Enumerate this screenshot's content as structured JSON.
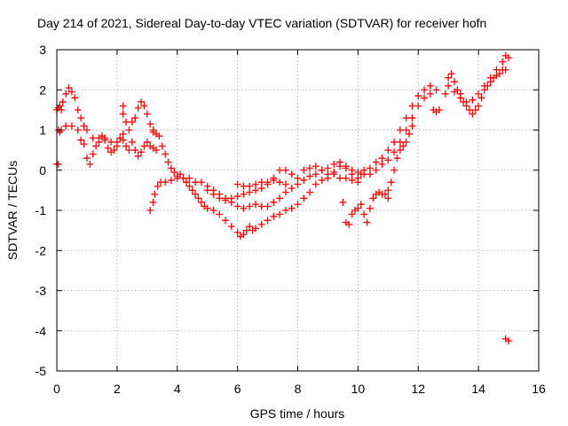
{
  "chart_data": {
    "type": "scatter",
    "title": "Day 214 of 2021, Sidereal Day-to-day VTEC variation (SDTVAR) for receiver hofn",
    "xlabel": "GPS time / hours",
    "ylabel": "SDTVAR / TECUs",
    "xlim": [
      0,
      16
    ],
    "ylim": [
      -5,
      3
    ],
    "x_ticks": [
      "0",
      "2",
      "4",
      "6",
      "8",
      "10",
      "12",
      "14",
      "16"
    ],
    "y_ticks": [
      "3",
      "2",
      "1",
      "0",
      "-1",
      "-2",
      "-3",
      "-4",
      "-5"
    ],
    "grid": true,
    "marker": "plus",
    "color": "#ff0000",
    "series": [
      {
        "points": [
          [
            0.0,
            0.15
          ],
          [
            0.05,
            0.15
          ],
          [
            0.0,
            1.5
          ],
          [
            0.05,
            1.55
          ],
          [
            0.1,
            1.6
          ],
          [
            0.15,
            1.5
          ],
          [
            0.05,
            1.0
          ],
          [
            0.1,
            0.95
          ],
          [
            0.15,
            1.0
          ],
          [
            0.2,
            1.7
          ],
          [
            0.3,
            1.9
          ],
          [
            0.4,
            2.05
          ],
          [
            0.5,
            1.95
          ],
          [
            0.6,
            1.8
          ],
          [
            0.7,
            1.5
          ],
          [
            0.8,
            1.3
          ],
          [
            0.9,
            1.1
          ],
          [
            1.0,
            1.0
          ],
          [
            0.3,
            1.1
          ],
          [
            0.5,
            1.1
          ],
          [
            0.7,
            1.0
          ],
          [
            0.8,
            0.75
          ],
          [
            0.9,
            0.65
          ],
          [
            1.0,
            0.3
          ],
          [
            1.1,
            0.15
          ],
          [
            1.2,
            0.4
          ],
          [
            1.3,
            0.6
          ],
          [
            1.4,
            0.7
          ],
          [
            1.5,
            0.85
          ],
          [
            1.6,
            0.75
          ],
          [
            1.7,
            0.55
          ],
          [
            1.8,
            0.45
          ],
          [
            1.9,
            0.5
          ],
          [
            2.0,
            0.6
          ],
          [
            2.1,
            0.8
          ],
          [
            2.2,
            0.75
          ],
          [
            2.3,
            0.6
          ],
          [
            2.4,
            0.5
          ],
          [
            1.2,
            0.8
          ],
          [
            1.4,
            0.8
          ],
          [
            1.6,
            0.8
          ],
          [
            1.8,
            0.7
          ],
          [
            2.0,
            0.7
          ],
          [
            2.2,
            0.9
          ],
          [
            2.3,
            1.2
          ],
          [
            2.2,
            1.4
          ],
          [
            2.2,
            1.6
          ],
          [
            2.4,
            1.0
          ],
          [
            2.5,
            1.2
          ],
          [
            2.6,
            1.3
          ],
          [
            2.7,
            1.55
          ],
          [
            2.8,
            1.7
          ],
          [
            2.9,
            1.6
          ],
          [
            3.0,
            1.4
          ],
          [
            3.1,
            1.15
          ],
          [
            3.2,
            0.95
          ],
          [
            2.5,
            0.7
          ],
          [
            2.6,
            0.5
          ],
          [
            2.7,
            0.35
          ],
          [
            2.8,
            0.45
          ],
          [
            2.9,
            0.6
          ],
          [
            3.0,
            0.7
          ],
          [
            3.1,
            0.6
          ],
          [
            3.2,
            0.55
          ],
          [
            3.3,
            0.5
          ],
          [
            3.2,
            1.0
          ],
          [
            3.3,
            0.9
          ],
          [
            3.4,
            0.85
          ],
          [
            3.5,
            0.6
          ],
          [
            3.6,
            0.4
          ],
          [
            3.7,
            0.2
          ],
          [
            3.8,
            0.05
          ],
          [
            3.9,
            -0.05
          ],
          [
            4.0,
            -0.15
          ],
          [
            3.1,
            -1.0
          ],
          [
            3.2,
            -0.8
          ],
          [
            3.25,
            -0.6
          ],
          [
            3.35,
            -0.4
          ],
          [
            3.45,
            -0.3
          ],
          [
            3.6,
            -0.3
          ],
          [
            3.8,
            -0.25
          ],
          [
            4.0,
            -0.2
          ],
          [
            4.1,
            -0.1
          ],
          [
            4.2,
            -0.2
          ],
          [
            4.3,
            -0.3
          ],
          [
            4.4,
            -0.4
          ],
          [
            4.5,
            -0.5
          ],
          [
            4.6,
            -0.6
          ],
          [
            4.7,
            -0.7
          ],
          [
            4.8,
            -0.8
          ],
          [
            4.9,
            -0.9
          ],
          [
            5.0,
            -0.95
          ],
          [
            5.2,
            -1.0
          ],
          [
            5.4,
            -1.1
          ],
          [
            5.6,
            -1.25
          ],
          [
            5.8,
            -1.4
          ],
          [
            6.0,
            -1.55
          ],
          [
            6.1,
            -1.65
          ],
          [
            6.2,
            -1.6
          ],
          [
            6.3,
            -1.5
          ],
          [
            6.4,
            -1.4
          ],
          [
            6.5,
            -1.5
          ],
          [
            6.6,
            -1.45
          ],
          [
            6.8,
            -1.35
          ],
          [
            7.0,
            -1.25
          ],
          [
            7.2,
            -1.15
          ],
          [
            7.4,
            -1.1
          ],
          [
            7.6,
            -1.0
          ],
          [
            7.8,
            -0.95
          ],
          [
            8.0,
            -0.85
          ],
          [
            8.2,
            -0.7
          ],
          [
            8.4,
            -0.55
          ],
          [
            8.6,
            -0.35
          ],
          [
            8.8,
            -0.25
          ],
          [
            9.0,
            -0.2
          ],
          [
            9.2,
            -0.1
          ],
          [
            9.4,
            -0.2
          ],
          [
            9.6,
            -0.2
          ],
          [
            9.8,
            -0.25
          ],
          [
            10.0,
            -0.3
          ],
          [
            4.4,
            -0.2
          ],
          [
            4.6,
            -0.3
          ],
          [
            4.8,
            -0.3
          ],
          [
            5.0,
            -0.4
          ],
          [
            5.2,
            -0.5
          ],
          [
            5.4,
            -0.6
          ],
          [
            5.6,
            -0.7
          ],
          [
            5.8,
            -0.8
          ],
          [
            6.0,
            -0.9
          ],
          [
            6.2,
            -0.95
          ],
          [
            6.4,
            -0.9
          ],
          [
            6.6,
            -0.85
          ],
          [
            6.8,
            -0.9
          ],
          [
            7.0,
            -0.9
          ],
          [
            7.2,
            -0.8
          ],
          [
            7.4,
            -0.7
          ],
          [
            7.6,
            -0.55
          ],
          [
            7.8,
            -0.45
          ],
          [
            8.0,
            -0.35
          ],
          [
            8.2,
            -0.25
          ],
          [
            8.4,
            -0.15
          ],
          [
            8.6,
            -0.1
          ],
          [
            8.8,
            0.0
          ],
          [
            9.0,
            0.05
          ],
          [
            9.2,
            0.15
          ],
          [
            9.4,
            0.2
          ],
          [
            9.6,
            0.1
          ],
          [
            9.8,
            0.0
          ],
          [
            10.0,
            -0.05
          ],
          [
            5.0,
            -0.5
          ],
          [
            5.2,
            -0.6
          ],
          [
            5.4,
            -0.7
          ],
          [
            5.6,
            -0.75
          ],
          [
            5.8,
            -0.7
          ],
          [
            6.0,
            -0.65
          ],
          [
            6.2,
            -0.6
          ],
          [
            6.4,
            -0.55
          ],
          [
            6.6,
            -0.5
          ],
          [
            6.8,
            -0.45
          ],
          [
            7.0,
            -0.35
          ],
          [
            7.2,
            -0.2
          ],
          [
            7.4,
            0.0
          ],
          [
            7.6,
            0.0
          ],
          [
            7.8,
            -0.1
          ],
          [
            8.0,
            -0.2
          ],
          [
            6.0,
            -0.35
          ],
          [
            6.2,
            -0.4
          ],
          [
            6.4,
            -0.4
          ],
          [
            6.6,
            -0.35
          ],
          [
            6.8,
            -0.3
          ],
          [
            7.0,
            -0.3
          ],
          [
            7.2,
            -0.25
          ],
          [
            7.4,
            -0.3
          ],
          [
            7.6,
            -0.35
          ],
          [
            8.2,
            0.0
          ],
          [
            8.4,
            0.05
          ],
          [
            8.6,
            0.1
          ],
          [
            8.8,
            0.0
          ],
          [
            9.0,
            -0.1
          ],
          [
            9.2,
            -0.05
          ],
          [
            9.4,
            0.1
          ],
          [
            9.6,
            0.05
          ],
          [
            9.8,
            -0.1
          ],
          [
            9.5,
            -0.8
          ],
          [
            9.6,
            -1.3
          ],
          [
            9.7,
            -1.35
          ],
          [
            9.8,
            -1.1
          ],
          [
            9.9,
            -1.0
          ],
          [
            10.0,
            -0.95
          ],
          [
            10.1,
            -0.85
          ],
          [
            10.2,
            -1.1
          ],
          [
            10.3,
            -1.3
          ],
          [
            10.4,
            -0.95
          ],
          [
            10.5,
            -0.7
          ],
          [
            10.6,
            -0.6
          ],
          [
            10.7,
            -0.55
          ],
          [
            10.8,
            -0.6
          ],
          [
            10.9,
            -0.6
          ],
          [
            11.0,
            -0.7
          ],
          [
            10.1,
            -0.1
          ],
          [
            10.2,
            0.0
          ],
          [
            10.4,
            0.05
          ],
          [
            10.6,
            0.2
          ],
          [
            10.8,
            0.3
          ],
          [
            11.0,
            0.5
          ],
          [
            11.2,
            0.7
          ],
          [
            11.4,
            1.0
          ],
          [
            11.6,
            1.3
          ],
          [
            11.8,
            1.6
          ],
          [
            12.0,
            1.85
          ],
          [
            12.2,
            2.0
          ],
          [
            12.4,
            2.1
          ],
          [
            12.6,
            2.0
          ],
          [
            10.0,
            -0.2
          ],
          [
            10.2,
            -0.1
          ],
          [
            10.4,
            -0.1
          ],
          [
            10.6,
            0.0
          ],
          [
            10.8,
            0.15
          ],
          [
            11.0,
            0.25
          ],
          [
            11.2,
            0.45
          ],
          [
            11.4,
            0.7
          ],
          [
            11.6,
            1.0
          ],
          [
            11.8,
            1.3
          ],
          [
            12.0,
            1.6
          ],
          [
            12.2,
            1.8
          ],
          [
            12.4,
            1.9
          ],
          [
            11.0,
            -0.5
          ],
          [
            11.1,
            -0.3
          ],
          [
            11.2,
            0.0
          ],
          [
            11.3,
            0.3
          ],
          [
            11.4,
            0.5
          ],
          [
            11.5,
            0.6
          ],
          [
            11.6,
            0.7
          ],
          [
            11.7,
            0.9
          ],
          [
            11.8,
            1.1
          ],
          [
            12.5,
            1.5
          ],
          [
            12.6,
            1.45
          ],
          [
            12.7,
            1.5
          ],
          [
            12.9,
            1.9
          ],
          [
            13.0,
            2.3
          ],
          [
            13.1,
            2.4
          ],
          [
            13.2,
            2.2
          ],
          [
            13.3,
            2.0
          ],
          [
            13.4,
            1.9
          ],
          [
            13.5,
            1.7
          ],
          [
            13.6,
            1.6
          ],
          [
            13.7,
            1.5
          ],
          [
            13.8,
            1.4
          ],
          [
            13.9,
            1.5
          ],
          [
            14.0,
            1.6
          ],
          [
            14.1,
            1.8
          ],
          [
            14.2,
            2.0
          ],
          [
            14.3,
            2.1
          ],
          [
            14.4,
            2.2
          ],
          [
            14.5,
            2.3
          ],
          [
            14.6,
            2.35
          ],
          [
            14.7,
            2.4
          ],
          [
            14.8,
            2.5
          ],
          [
            14.9,
            2.5
          ],
          [
            13.0,
            2.1
          ],
          [
            13.2,
            1.95
          ],
          [
            13.4,
            1.8
          ],
          [
            13.6,
            1.7
          ],
          [
            13.8,
            1.75
          ],
          [
            14.0,
            1.9
          ],
          [
            14.2,
            2.1
          ],
          [
            14.4,
            2.3
          ],
          [
            14.6,
            2.5
          ],
          [
            14.8,
            2.7
          ],
          [
            14.9,
            2.85
          ],
          [
            15.0,
            2.8
          ],
          [
            14.9,
            -4.2
          ],
          [
            15.0,
            -4.25
          ]
        ]
      }
    ]
  }
}
